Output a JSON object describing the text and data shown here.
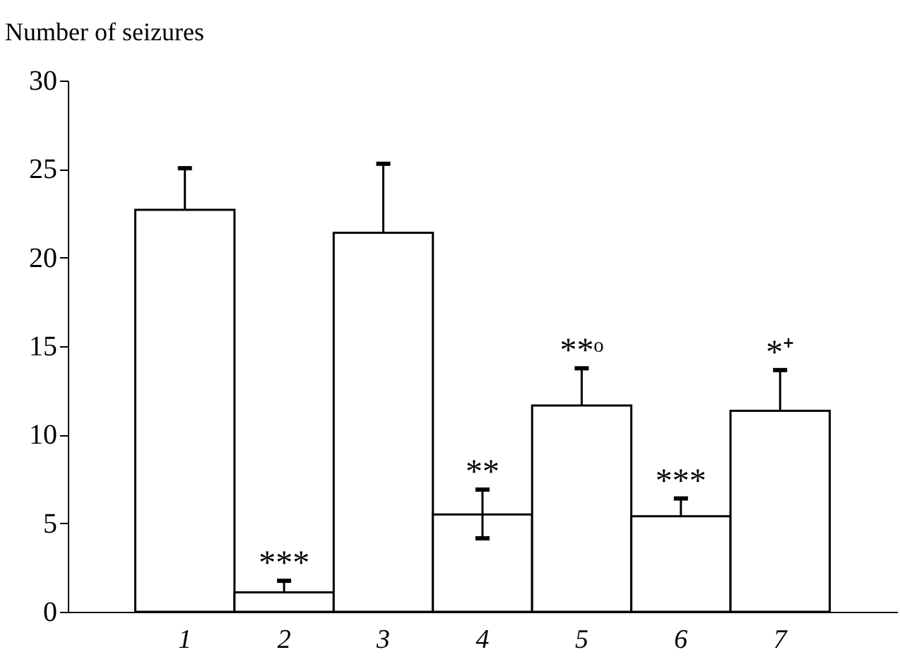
{
  "chart_data": {
    "type": "bar",
    "ylabel": "Number of seizures",
    "categories": [
      "1",
      "2",
      "3",
      "4",
      "5",
      "6",
      "7"
    ],
    "values": [
      22.7,
      1.1,
      21.4,
      5.5,
      11.65,
      5.4,
      11.35
    ],
    "errors": [
      [
        22.7,
        25.05
      ],
      [
        1.1,
        1.75
      ],
      [
        21.4,
        25.3
      ],
      [
        4.15,
        6.9
      ],
      [
        11.65,
        13.75
      ],
      [
        5.4,
        6.4
      ],
      [
        11.35,
        13.65
      ]
    ],
    "color": "#ffffff",
    "ylim": [
      0,
      30
    ],
    "yticks": [
      0,
      5,
      10,
      15,
      20,
      25,
      30
    ],
    "grid": false,
    "annotations": [
      {
        "text": "***",
        "x": "2",
        "y": 1.75
      },
      {
        "text": "**",
        "x": "4",
        "y": 6.9
      },
      {
        "text": "**ᵒ",
        "x": "5",
        "y": 13.75
      },
      {
        "text": "***",
        "x": "6",
        "y": 6.4
      },
      {
        "text": "*⁺",
        "x": "7",
        "y": 13.65
      }
    ]
  }
}
